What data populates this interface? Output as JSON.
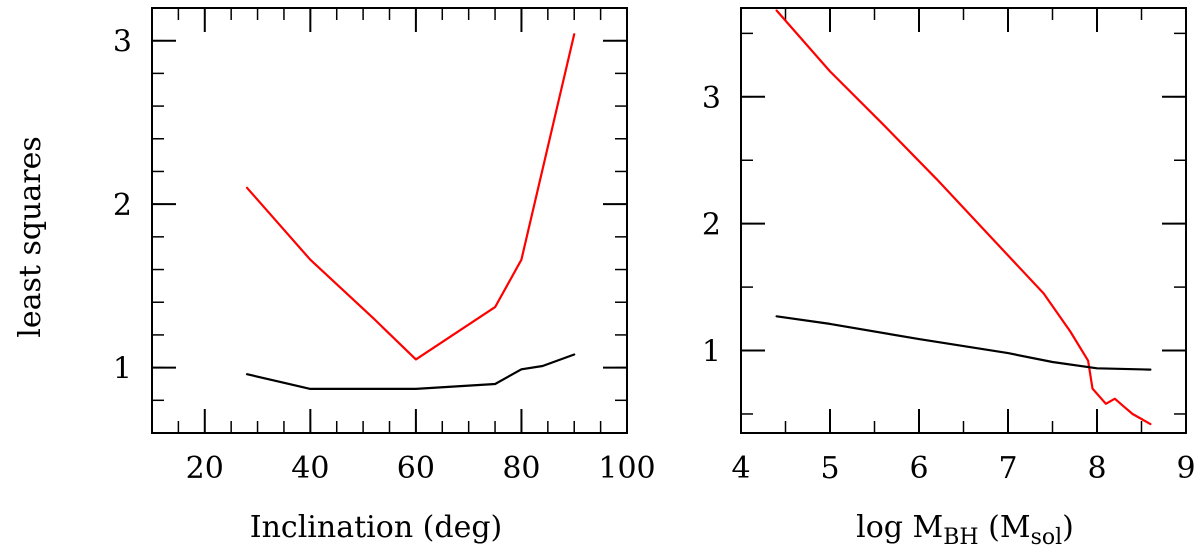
{
  "chart_data": [
    {
      "type": "line",
      "title": "",
      "xlabel": "Inclination (deg)",
      "ylabel": "least squares",
      "xlim": [
        10,
        100
      ],
      "ylim": [
        0.6,
        3.2
      ],
      "xticks": [
        20,
        40,
        60,
        80,
        100
      ],
      "yticks": [
        1,
        2,
        3
      ],
      "grid": false,
      "series": [
        {
          "name": "red",
          "color": "#ff0000",
          "x": [
            28,
            40,
            52,
            60,
            75,
            80,
            90
          ],
          "y": [
            2.1,
            1.66,
            1.3,
            1.05,
            1.37,
            1.66,
            3.04
          ]
        },
        {
          "name": "black",
          "color": "#000000",
          "x": [
            28,
            40,
            60,
            75,
            80,
            84,
            90
          ],
          "y": [
            0.96,
            0.87,
            0.87,
            0.9,
            0.99,
            1.01,
            1.08
          ]
        }
      ]
    },
    {
      "type": "line",
      "title": "",
      "xlabel": "log M",
      "xlabel_sub": "BH",
      "xlabel_paren_open": " (M",
      "xlabel_paren_sub": "sol",
      "xlabel_paren_close": ")",
      "ylabel": "",
      "xlim": [
        4,
        9
      ],
      "ylim": [
        0.35,
        3.7
      ],
      "xticks": [
        4,
        5,
        6,
        7,
        8,
        9
      ],
      "yticks": [
        1,
        2,
        3
      ],
      "grid": false,
      "series": [
        {
          "name": "red",
          "color": "#ff0000",
          "x": [
            4.4,
            5.0,
            5.6,
            6.2,
            6.8,
            7.4,
            7.7,
            7.9,
            7.95,
            8.1,
            8.15,
            8.2,
            8.3,
            8.4,
            8.5,
            8.6
          ],
          "y": [
            3.68,
            3.2,
            2.78,
            2.35,
            1.9,
            1.45,
            1.15,
            0.92,
            0.7,
            0.58,
            0.6,
            0.62,
            0.56,
            0.5,
            0.46,
            0.42
          ]
        },
        {
          "name": "black",
          "color": "#000000",
          "x": [
            4.4,
            5.0,
            6.0,
            7.0,
            7.5,
            8.0,
            8.6
          ],
          "y": [
            1.27,
            1.21,
            1.09,
            0.98,
            0.91,
            0.86,
            0.85
          ]
        }
      ]
    }
  ]
}
